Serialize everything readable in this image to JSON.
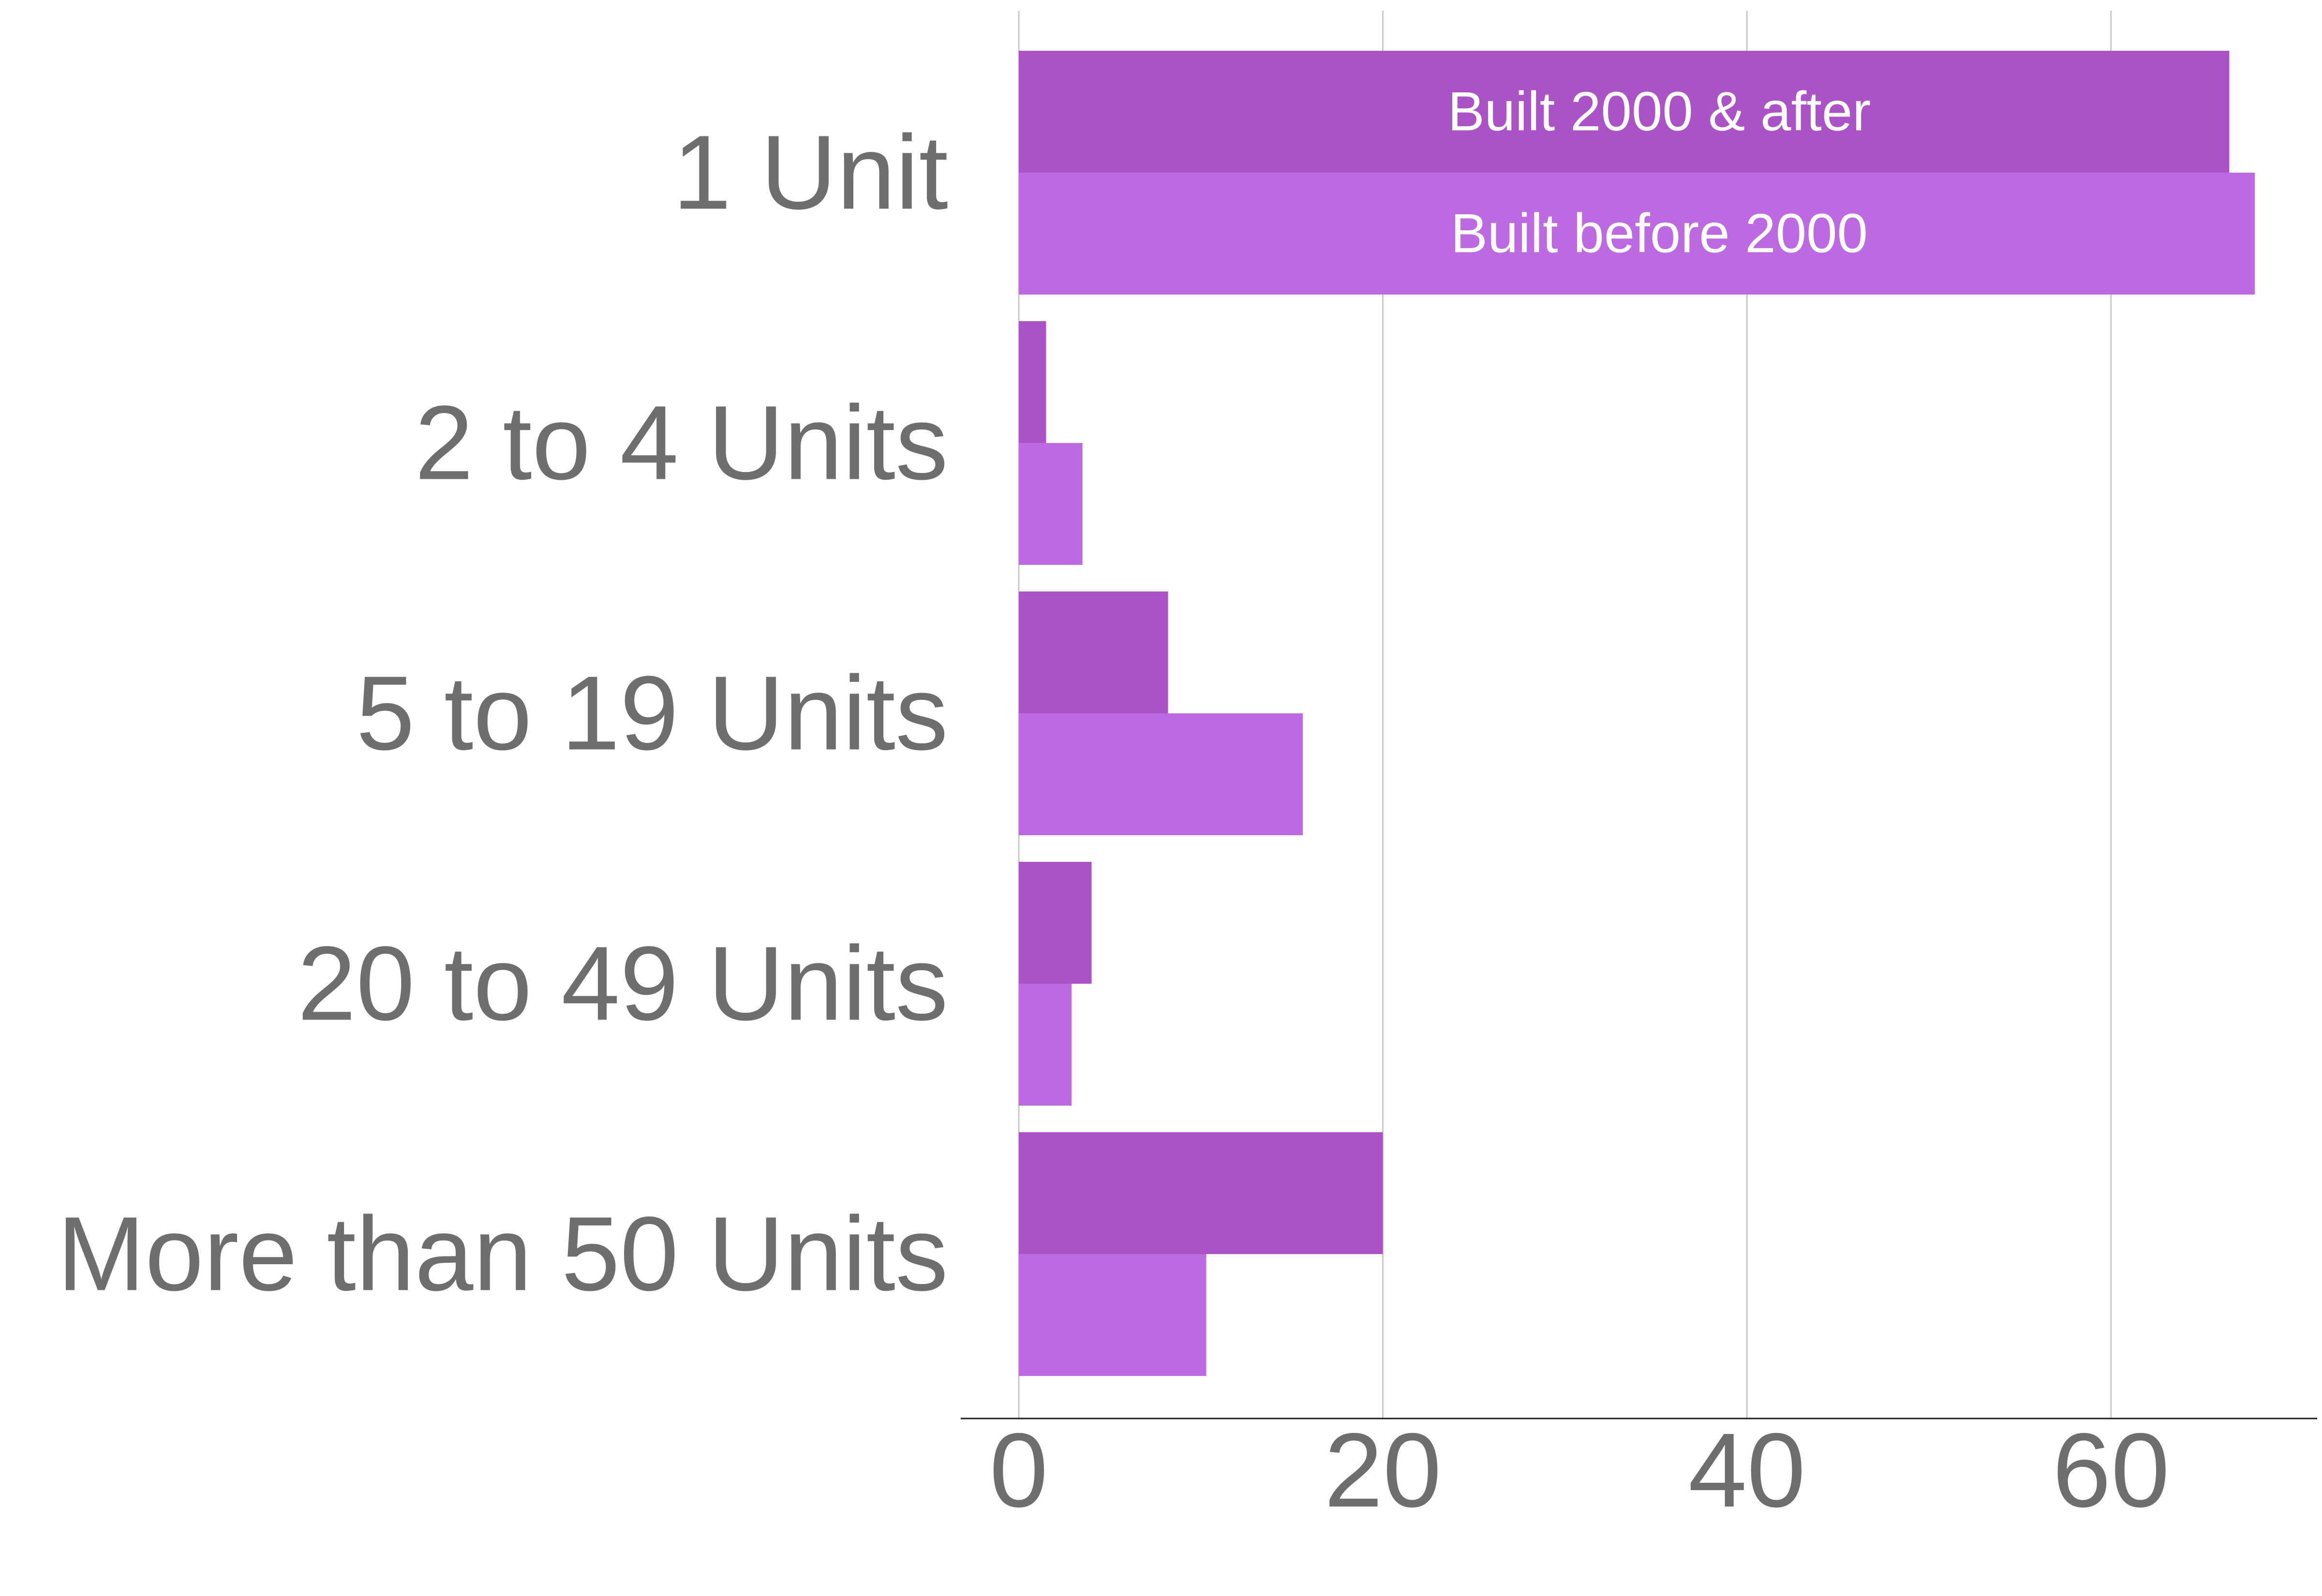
{
  "chart_data": {
    "type": "bar",
    "orientation": "horizontal",
    "categories": [
      "1 Unit",
      "2 to 4 Units",
      "5 to 19 Units",
      "20 to 49 Units",
      "More than 50 Units"
    ],
    "series": [
      {
        "name": "Built 2000 & after",
        "color": "#ab52c6",
        "values": [
          66.5,
          1.5,
          8.2,
          4.0,
          20.0
        ]
      },
      {
        "name": "Built before 2000",
        "color": "#bd69e2",
        "values": [
          67.9,
          3.5,
          15.6,
          2.9,
          10.3
        ]
      }
    ],
    "x_ticks": [
      "0",
      "20",
      "40",
      "60"
    ],
    "x_tick_values": [
      0,
      20,
      40,
      60
    ],
    "xlim": [
      0,
      70
    ],
    "grid": true,
    "title": "",
    "xlabel": "",
    "ylabel": "",
    "legend": "series names shown inside the 1 Unit bars"
  }
}
